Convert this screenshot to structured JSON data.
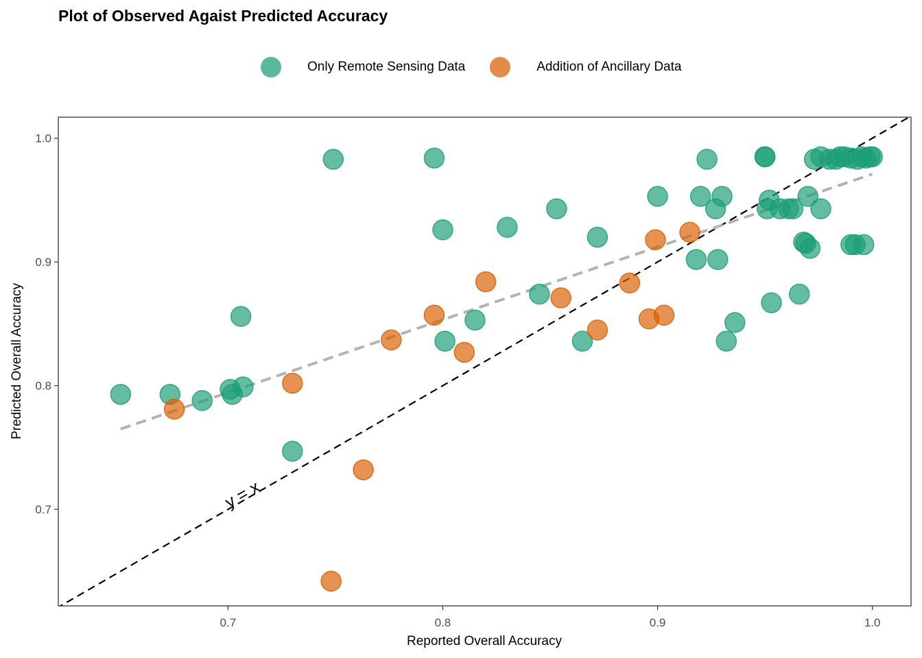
{
  "chart_data": {
    "type": "scatter",
    "title": "Plot of Observed Agaist Predicted Accuracy",
    "xlabel": "Reported Overall Accuracy",
    "ylabel": "Predicted Overall Accuracy",
    "xlim": [
      0.621,
      1.018
    ],
    "ylim": [
      0.622,
      1.017
    ],
    "xticks": [
      0.7,
      0.8,
      0.9,
      1.0
    ],
    "xtick_labels": [
      "0.7",
      "0.8",
      "0.9",
      "1.0"
    ],
    "yticks": [
      0.7,
      0.8,
      0.9,
      1.0
    ],
    "ytick_labels": [
      "0.7",
      "0.8",
      "0.9",
      "1.0"
    ],
    "grid": false,
    "legend_position": "top",
    "identity_line_label": "y = x",
    "trend_line": {
      "x": [
        0.65,
        1.0
      ],
      "y": [
        0.765,
        0.971
      ]
    },
    "series": [
      {
        "name": "Only Remote Sensing Data",
        "color": "#1b9e77",
        "points": [
          [
            0.65,
            0.793
          ],
          [
            0.673,
            0.793
          ],
          [
            0.688,
            0.788
          ],
          [
            0.701,
            0.797
          ],
          [
            0.702,
            0.793
          ],
          [
            0.707,
            0.799
          ],
          [
            0.706,
            0.856
          ],
          [
            0.73,
            0.747
          ],
          [
            0.749,
            0.983
          ],
          [
            0.796,
            0.984
          ],
          [
            0.8,
            0.926
          ],
          [
            0.801,
            0.836
          ],
          [
            0.815,
            0.853
          ],
          [
            0.83,
            0.928
          ],
          [
            0.845,
            0.874
          ],
          [
            0.853,
            0.943
          ],
          [
            0.865,
            0.836
          ],
          [
            0.872,
            0.92
          ],
          [
            0.9,
            0.953
          ],
          [
            0.918,
            0.902
          ],
          [
            0.92,
            0.953
          ],
          [
            0.923,
            0.983
          ],
          [
            0.927,
            0.943
          ],
          [
            0.928,
            0.902
          ],
          [
            0.93,
            0.953
          ],
          [
            0.932,
            0.836
          ],
          [
            0.936,
            0.851
          ],
          [
            0.95,
            0.985
          ],
          [
            0.95,
            0.985
          ],
          [
            0.951,
            0.943
          ],
          [
            0.952,
            0.95
          ],
          [
            0.953,
            0.867
          ],
          [
            0.957,
            0.943
          ],
          [
            0.961,
            0.943
          ],
          [
            0.963,
            0.943
          ],
          [
            0.966,
            0.874
          ],
          [
            0.968,
            0.916
          ],
          [
            0.969,
            0.915
          ],
          [
            0.97,
            0.953
          ],
          [
            0.971,
            0.911
          ],
          [
            0.973,
            0.983
          ],
          [
            0.976,
            0.985
          ],
          [
            0.976,
            0.943
          ],
          [
            0.98,
            0.983
          ],
          [
            0.983,
            0.983
          ],
          [
            0.985,
            0.985
          ],
          [
            0.987,
            0.985
          ],
          [
            0.99,
            0.914
          ],
          [
            0.99,
            0.984
          ],
          [
            0.992,
            0.914
          ],
          [
            0.993,
            0.983
          ],
          [
            0.995,
            0.985
          ],
          [
            0.996,
            0.914
          ],
          [
            0.997,
            0.984
          ],
          [
            0.999,
            0.985
          ],
          [
            1.0,
            0.985
          ]
        ]
      },
      {
        "name": "Addition of Ancillary Data",
        "color": "#d95f02",
        "points": [
          [
            0.675,
            0.781
          ],
          [
            0.73,
            0.802
          ],
          [
            0.748,
            0.642
          ],
          [
            0.763,
            0.732
          ],
          [
            0.776,
            0.837
          ],
          [
            0.796,
            0.857
          ],
          [
            0.81,
            0.827
          ],
          [
            0.82,
            0.884
          ],
          [
            0.855,
            0.871
          ],
          [
            0.872,
            0.845
          ],
          [
            0.887,
            0.883
          ],
          [
            0.896,
            0.854
          ],
          [
            0.899,
            0.918
          ],
          [
            0.903,
            0.857
          ],
          [
            0.915,
            0.924
          ]
        ]
      }
    ]
  }
}
